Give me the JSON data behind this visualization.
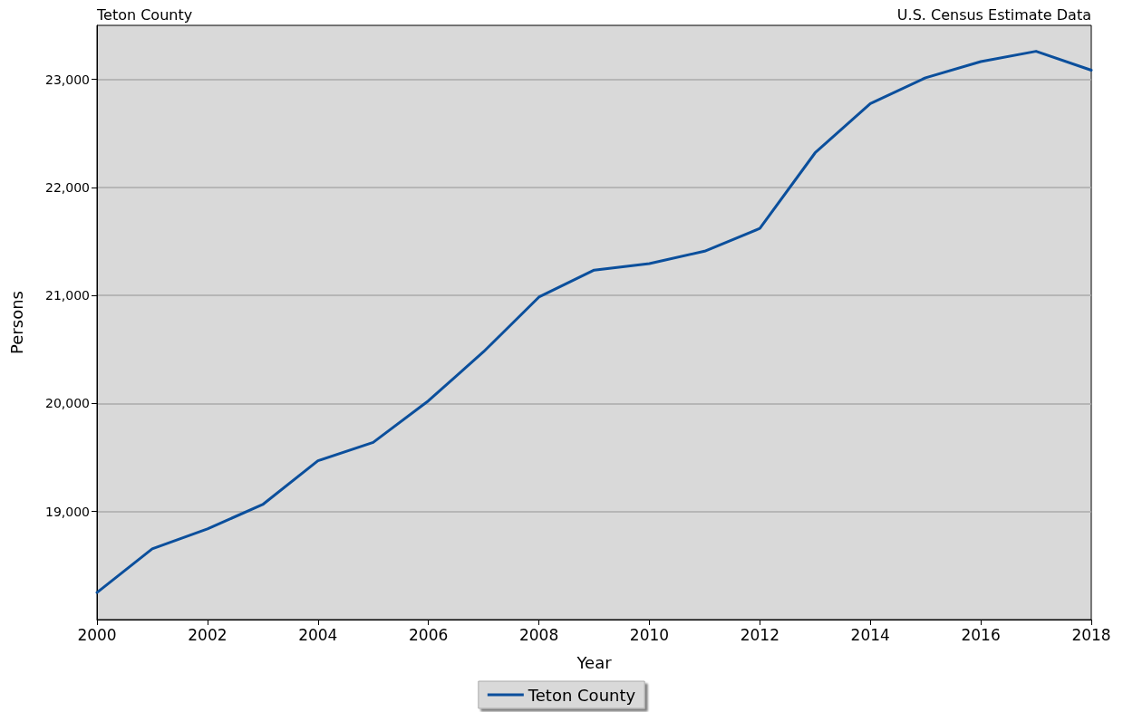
{
  "chart_data": {
    "type": "line",
    "title": "Teton County",
    "annotations": [
      "U.S. Census Estimate Data"
    ],
    "xlabel": "Year",
    "ylabel": "Persons",
    "x": [
      2000,
      2001,
      2002,
      2003,
      2004,
      2005,
      2006,
      2007,
      2008,
      2009,
      2010,
      2011,
      2012,
      2013,
      2014,
      2015,
      2016,
      2017,
      2018
    ],
    "series": [
      {
        "name": "Teton County",
        "color": "#0b4f9c",
        "values": [
          18250,
          18655,
          18840,
          19065,
          19470,
          19640,
          20025,
          20480,
          20985,
          21235,
          21295,
          21410,
          21620,
          22320,
          22775,
          23015,
          23165,
          23260,
          23085
        ]
      }
    ],
    "xlim": [
      2000,
      2018
    ],
    "xticks": [
      2000,
      2002,
      2004,
      2006,
      2008,
      2010,
      2012,
      2014,
      2016,
      2018
    ],
    "ylim": [
      18000,
      23500
    ],
    "yticks": [
      {
        "value": 19000,
        "label": "19,000"
      },
      {
        "value": 20000,
        "label": "20,000"
      },
      {
        "value": 21000,
        "label": "21,000"
      },
      {
        "value": 22000,
        "label": "22,000"
      },
      {
        "value": 23000,
        "label": "23,000"
      }
    ],
    "grid": "y",
    "legend": "bottom",
    "marker": "none",
    "line_style": "solid"
  }
}
